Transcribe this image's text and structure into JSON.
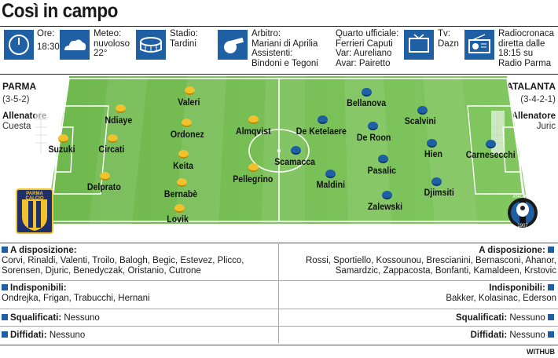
{
  "title": "Così in campo",
  "info": {
    "ore_label": "Ore:",
    "ore_value": "18:30",
    "meteo_label": "Meteo:",
    "meteo_value1": "nuvoloso",
    "meteo_value2": "22°",
    "stadio_label": "Stadio:",
    "stadio_value": "Tardini",
    "arbitro_line1": "Arbitro:",
    "arbitro_line2": "Mariani di Aprilia",
    "arbitro_line3": "Assistenti:",
    "arbitro_line4": "Bindoni e Tegoni",
    "quarto_line1": "Quarto ufficiale:",
    "quarto_line2": "Ferrieri Caputi",
    "quarto_line3": "Var: Aureliano",
    "quarto_line4": "Avar: Pairetto",
    "tv_label": "Tv:",
    "tv_value": "Dazn",
    "radio_line1": "Radiocronaca",
    "radio_line2": "diretta dalle",
    "radio_line3": "18:15 su",
    "radio_line4": "Radio Parma"
  },
  "home": {
    "name": "PARMA",
    "formation": "(3-5-2)",
    "coach_label": "Allenatore",
    "coach": "Cuesta",
    "logo_text": "PARMA CALCIO",
    "players": [
      "Suzuki",
      "Ndiaye",
      "Circati",
      "Delprato",
      "Valeri",
      "Ordonez",
      "Keita",
      "Bernabè",
      "Lovik",
      "Almqvist",
      "Pellegrino"
    ]
  },
  "away": {
    "name": "ATALANTA",
    "formation": "(3-4-2-1)",
    "coach_label": "Allenatore",
    "coach": "Juric",
    "logo_text": "ATALANTA",
    "logo_year": "1907",
    "players": [
      "Carnesecchi",
      "Scalvini",
      "Hien",
      "Djimsiti",
      "Bellanova",
      "De Roon",
      "Pasalic",
      "Zalewski",
      "De Ketelaere",
      "Maldini",
      "Scamacca"
    ]
  },
  "sections": {
    "disp_label": "A disposizione:",
    "home_disp1": "Corvi, Rinaldi, Valenti, Troilo, Balogh, Begic, Estevez, Plicco,",
    "home_disp2": "Sorensen, Djuric, Benedyczak, Oristanio, Cutrone",
    "away_disp1": "Rossi, Sportiello, Kossounou, Brescianini, Bernasconi, Ahanor,",
    "away_disp2": "Samardzic, Zappacosta, Bonfanti, Kamaldeen, Krstovic",
    "indisp_label": "Indisponibili:",
    "home_indisp": "Ondrejka, Frigan, Trabucchi, Hernani",
    "away_indisp": "Bakker, Kolasinac, Ederson",
    "squal_label": "Squalificati:",
    "home_squal": "Nessuno",
    "away_squal": "Nessuno",
    "diff_label": "Diffidati:",
    "home_diff": "Nessuno",
    "away_diff": "Nessuno"
  },
  "credit": "WITHUB",
  "colors": {
    "accent": "#1f5fa3",
    "parma": "#f2c12e",
    "atalanta": "#1f5fa3",
    "pitch_light": "#7bc25a",
    "pitch_dark": "#6db44d"
  }
}
